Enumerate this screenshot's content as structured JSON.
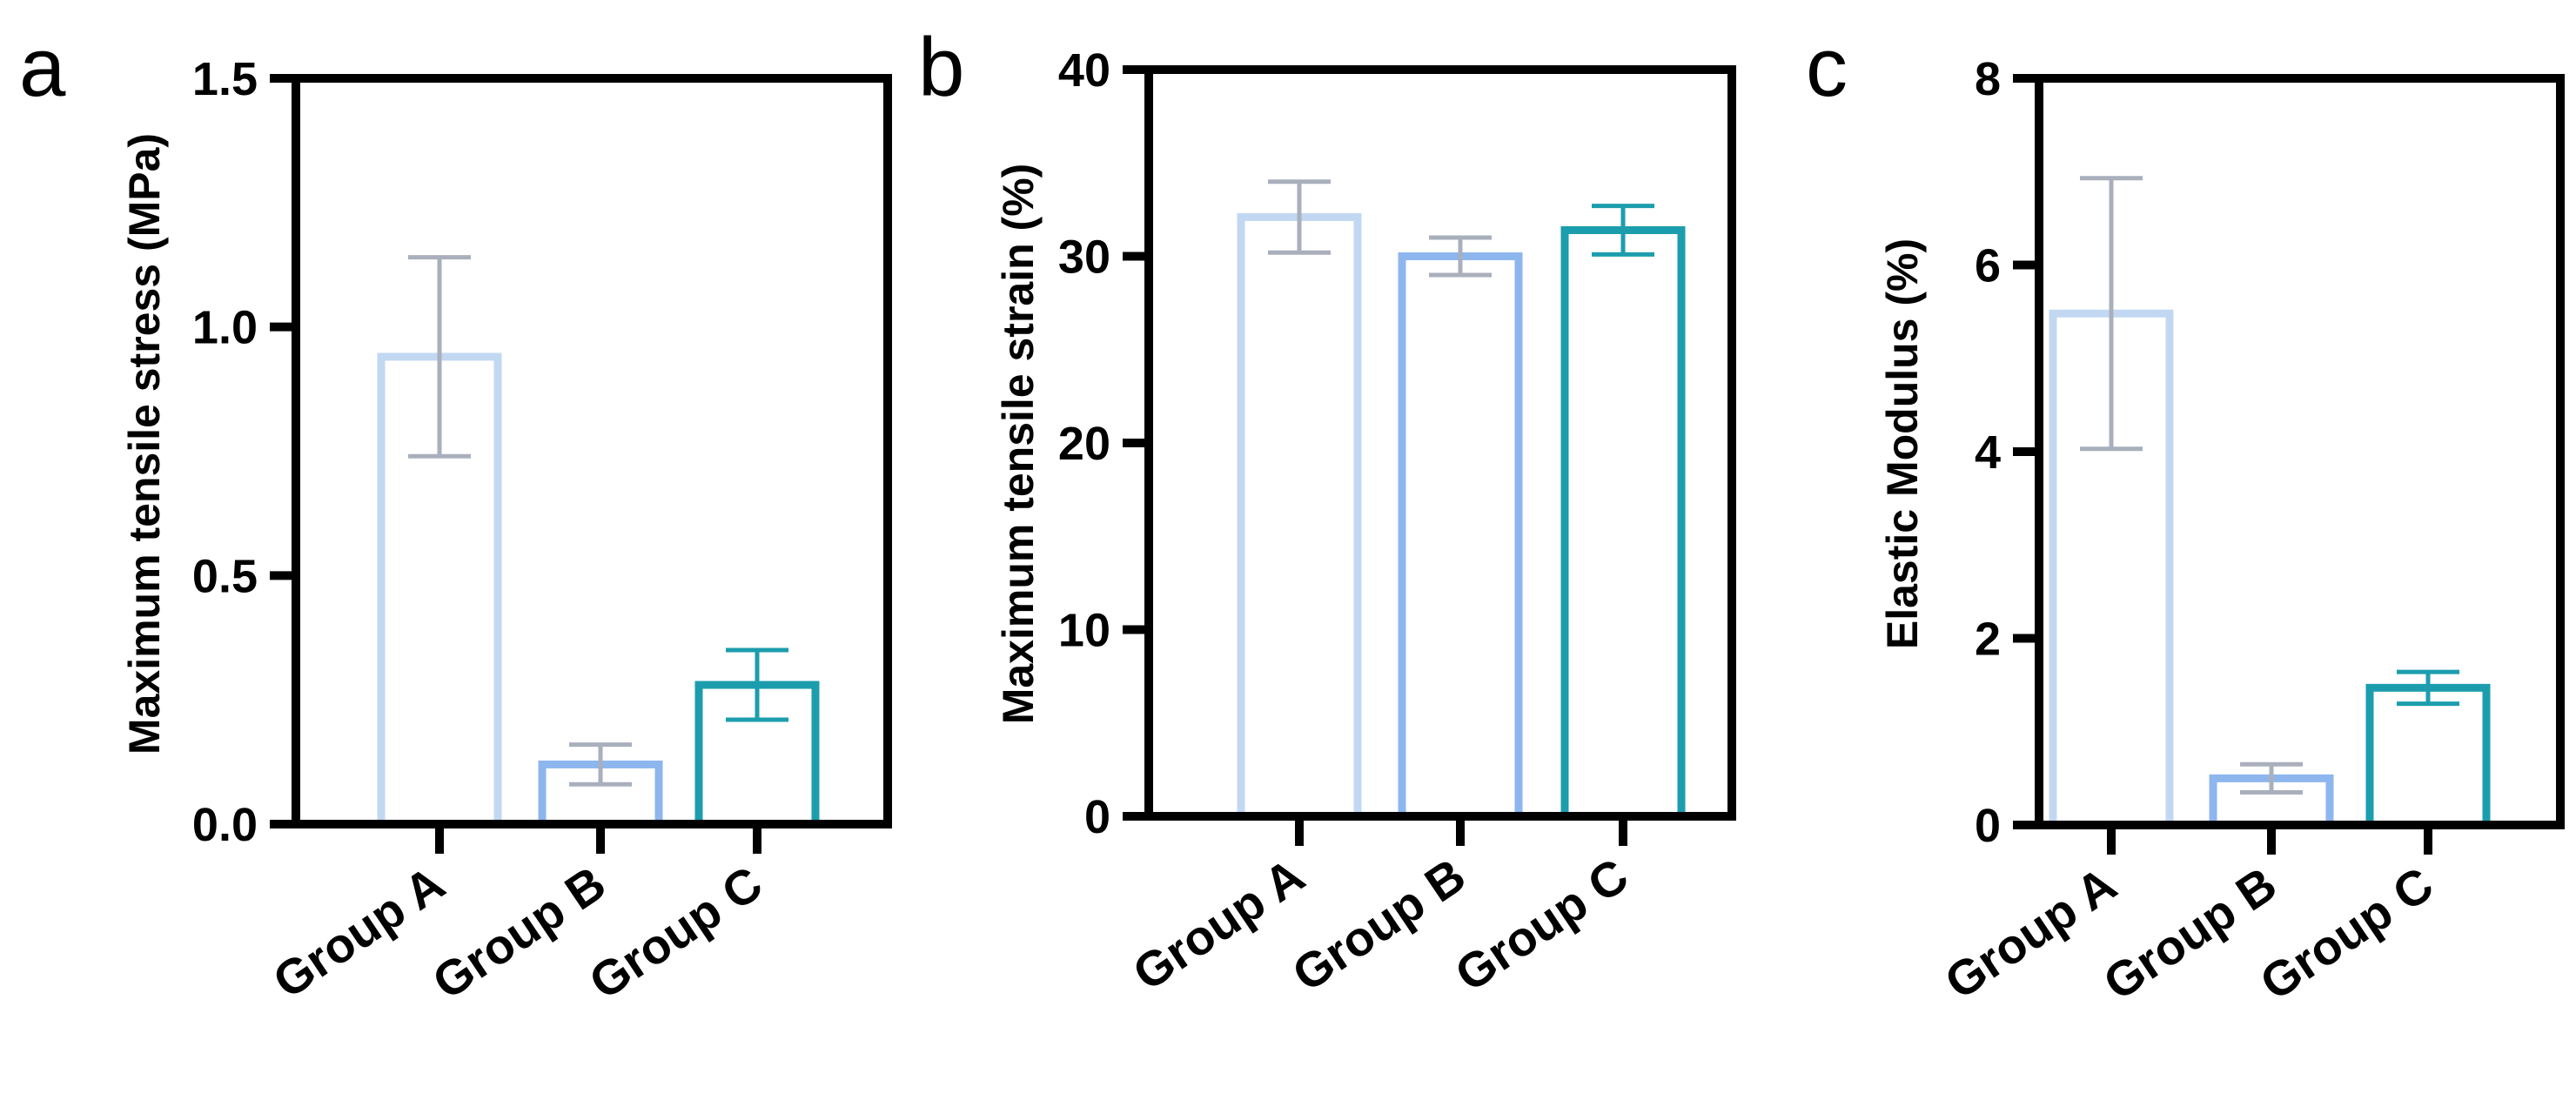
{
  "figure": {
    "panels": [
      "a",
      "b",
      "c"
    ]
  },
  "colors": {
    "group_a": "#C2D8F2",
    "group_b": "#8DB6EE",
    "group_c": "#1C9DAE",
    "error_a": "#A9AFBC",
    "error_b": "#A9AFBC",
    "error_c": "#1C9DAE",
    "axis": "#000000"
  },
  "chart_data": [
    {
      "type": "bar",
      "panel": "a",
      "title": "",
      "xlabel": "",
      "ylabel": "Maximum tensile stress (MPa)",
      "categories": [
        "Group A",
        "Group B",
        "Group C"
      ],
      "values": [
        0.94,
        0.12,
        0.28
      ],
      "errors": [
        0.2,
        0.04,
        0.07
      ],
      "ylim": [
        0,
        1.5
      ],
      "yticks": [
        0.0,
        0.5,
        1.0,
        1.5
      ],
      "ytick_labels": [
        "0.0",
        "0.5",
        "1.0",
        "1.5"
      ],
      "grid": false
    },
    {
      "type": "bar",
      "panel": "b",
      "title": "",
      "xlabel": "",
      "ylabel": "Maximum tensile strain (%)",
      "categories": [
        "Group A",
        "Group B",
        "Group C"
      ],
      "values": [
        32.1,
        30.0,
        31.4
      ],
      "errors": [
        1.9,
        1.0,
        1.3
      ],
      "ylim": [
        0,
        40
      ],
      "yticks": [
        0,
        10,
        20,
        30,
        40
      ],
      "ytick_labels": [
        "0",
        "10",
        "20",
        "30",
        "40"
      ],
      "grid": false
    },
    {
      "type": "bar",
      "panel": "c",
      "title": "",
      "xlabel": "",
      "ylabel": "Elastic Modulus (%)",
      "categories": [
        "Group A",
        "Group B",
        "Group C"
      ],
      "values": [
        5.48,
        0.5,
        1.47
      ],
      "errors": [
        1.45,
        0.15,
        0.17
      ],
      "ylim": [
        0,
        8
      ],
      "yticks": [
        0,
        2,
        4,
        6,
        8
      ],
      "ytick_labels": [
        "0",
        "2",
        "4",
        "6",
        "8"
      ],
      "grid": false
    }
  ]
}
